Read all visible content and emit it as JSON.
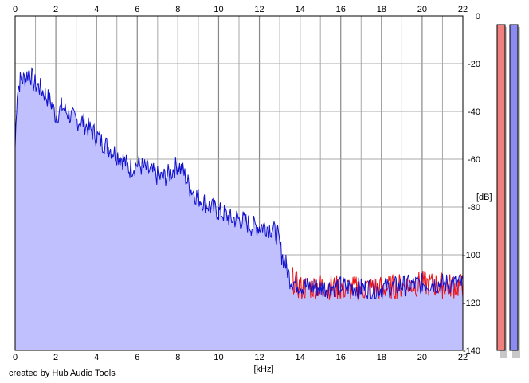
{
  "credit": "created by Hub Audio Tools",
  "colors": {
    "fill": "#c0c0ff",
    "left_channel": "#ee1111",
    "right_channel": "#1111cc",
    "grid": "#a8a8a8",
    "meter_left": "#f08080",
    "meter_right": "#8c8cf0"
  },
  "chart_data": {
    "type": "area",
    "xlabel": "[kHz]",
    "ylabel": "[dB]",
    "xlim": [
      0,
      22
    ],
    "ylim": [
      -140,
      0
    ],
    "xticks": [
      "0",
      "2",
      "4",
      "6",
      "8",
      "10",
      "12",
      "14",
      "16",
      "18",
      "20",
      "22"
    ],
    "yticks": [
      "0",
      "-20",
      "-40",
      "-60",
      "-80",
      "-100",
      "-120",
      "-140"
    ],
    "grid": true,
    "series": [
      {
        "color": "#1111cc",
        "x": [
          0.0,
          0.1,
          0.25,
          0.5,
          0.7,
          0.9,
          1.2,
          1.5,
          1.8,
          2.0,
          2.3,
          2.6,
          3.0,
          3.3,
          3.6,
          4.0,
          4.3,
          4.6,
          5.0,
          5.3,
          5.6,
          6.0,
          6.4,
          6.8,
          7.2,
          7.6,
          8.0,
          8.3,
          8.6,
          9.0,
          9.3,
          9.6,
          10.0,
          10.3,
          10.6,
          11.0,
          11.3,
          11.6,
          12.0,
          12.3,
          12.6,
          12.9,
          13.1,
          13.3,
          13.5,
          13.8,
          14.2,
          15.0,
          16.0,
          17.0,
          18.0,
          19.0,
          20.0,
          21.0,
          22.0
        ],
        "y": [
          -55,
          -32,
          -27,
          -26,
          -23,
          -28,
          -30,
          -33,
          -37,
          -42,
          -38,
          -41,
          -44,
          -44,
          -47,
          -50,
          -53,
          -55,
          -58,
          -60,
          -64,
          -62,
          -64,
          -66,
          -68,
          -66,
          -62,
          -66,
          -72,
          -76,
          -78,
          -80,
          -82,
          -83,
          -85,
          -85,
          -86,
          -88,
          -88,
          -88,
          -89,
          -92,
          -100,
          -104,
          -110,
          -112,
          -113,
          -114,
          -113,
          -114,
          -114,
          -113,
          -112,
          -112,
          -112
        ]
      },
      {
        "color": "#ee1111",
        "x": [
          13.6,
          14.0,
          15.0,
          16.0,
          17.0,
          18.0,
          19.0,
          20.0,
          21.0,
          22.0
        ],
        "y": [
          -110,
          -114,
          -113,
          -114,
          -114,
          -114,
          -113,
          -112,
          -113,
          -113
        ]
      }
    ]
  },
  "meters": {
    "left": {
      "level": 1.0
    },
    "right": {
      "level": 1.0
    }
  }
}
